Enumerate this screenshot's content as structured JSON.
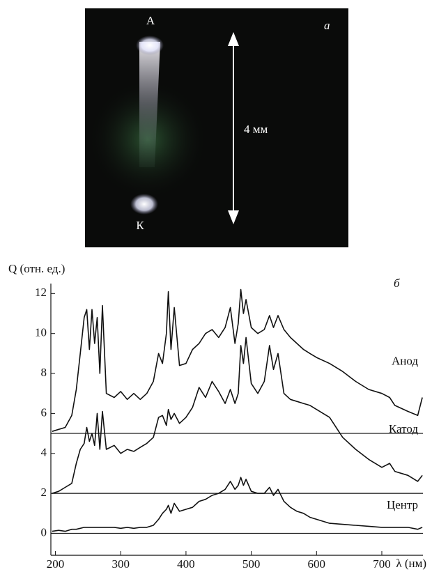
{
  "photo": {
    "panel_label": "а",
    "anode_label": "А",
    "cathode_label": "К",
    "scale_label": "4 мм"
  },
  "chart_data": {
    "type": "line",
    "panel_label": "б",
    "y_label": "Q (отн. ед.)",
    "x_label": "λ (нм)",
    "xlim": [
      193,
      763
    ],
    "ylim": [
      -1.1,
      12.5
    ],
    "xticks": [
      200,
      300,
      400,
      500,
      600,
      700
    ],
    "yticks": [
      0,
      2,
      4,
      6,
      8,
      10,
      12
    ],
    "baselines": [
      5,
      2,
      0
    ],
    "x": [
      195,
      205,
      215,
      225,
      232,
      238,
      244,
      248,
      252,
      256,
      260,
      264,
      268,
      272,
      278,
      290,
      300,
      310,
      320,
      330,
      340,
      350,
      358,
      364,
      370,
      373,
      377,
      382,
      390,
      400,
      410,
      420,
      430,
      440,
      450,
      460,
      468,
      475,
      480,
      484,
      488,
      492,
      500,
      510,
      520,
      528,
      534,
      541,
      550,
      560,
      570,
      580,
      590,
      600,
      620,
      640,
      660,
      680,
      700,
      712,
      720,
      740,
      755,
      762
    ],
    "series": [
      {
        "name": "Анод",
        "color": "#111111",
        "values": [
          5.1,
          5.2,
          5.3,
          5.9,
          7.2,
          9.0,
          10.8,
          11.2,
          9.2,
          11.2,
          9.5,
          10.8,
          8.0,
          11.4,
          7.0,
          6.8,
          7.1,
          6.7,
          7.0,
          6.7,
          7.0,
          7.6,
          9.0,
          8.5,
          10.0,
          12.1,
          9.2,
          11.3,
          8.4,
          8.5,
          9.2,
          9.5,
          10.0,
          10.2,
          9.8,
          10.3,
          11.3,
          9.5,
          10.5,
          12.2,
          11.0,
          11.7,
          10.3,
          10.0,
          10.2,
          10.9,
          10.3,
          10.9,
          10.2,
          9.8,
          9.5,
          9.2,
          9.0,
          8.8,
          8.5,
          8.1,
          7.6,
          7.2,
          7.0,
          6.8,
          6.4,
          6.1,
          5.9,
          6.8
        ]
      },
      {
        "name": "Катод",
        "color": "#111111",
        "values": [
          2.0,
          2.1,
          2.3,
          2.5,
          3.5,
          4.2,
          4.5,
          5.3,
          4.6,
          5.0,
          4.4,
          6.0,
          4.2,
          6.1,
          4.2,
          4.4,
          4.0,
          4.2,
          4.1,
          4.3,
          4.5,
          4.8,
          5.8,
          5.9,
          5.4,
          6.2,
          5.7,
          6.0,
          5.5,
          5.8,
          6.3,
          7.3,
          6.8,
          7.6,
          7.1,
          6.5,
          7.2,
          6.5,
          7.0,
          9.4,
          8.5,
          9.8,
          7.5,
          7.0,
          7.6,
          9.4,
          8.2,
          9.0,
          7.0,
          6.7,
          6.6,
          6.5,
          6.4,
          6.2,
          5.8,
          4.8,
          4.2,
          3.7,
          3.3,
          3.5,
          3.1,
          2.9,
          2.6,
          2.9
        ]
      },
      {
        "name": "Центр",
        "color": "#111111",
        "values": [
          0.1,
          0.15,
          0.1,
          0.2,
          0.2,
          0.25,
          0.3,
          0.3,
          0.3,
          0.3,
          0.3,
          0.3,
          0.3,
          0.3,
          0.3,
          0.3,
          0.25,
          0.3,
          0.25,
          0.3,
          0.3,
          0.4,
          0.7,
          1.0,
          1.2,
          1.4,
          1.0,
          1.5,
          1.1,
          1.2,
          1.3,
          1.6,
          1.7,
          1.9,
          2.0,
          2.2,
          2.6,
          2.2,
          2.4,
          2.8,
          2.4,
          2.7,
          2.1,
          2.0,
          2.0,
          2.3,
          1.9,
          2.2,
          1.6,
          1.3,
          1.1,
          1.0,
          0.8,
          0.7,
          0.5,
          0.45,
          0.4,
          0.35,
          0.3,
          0.3,
          0.3,
          0.3,
          0.2,
          0.3
        ]
      }
    ]
  }
}
